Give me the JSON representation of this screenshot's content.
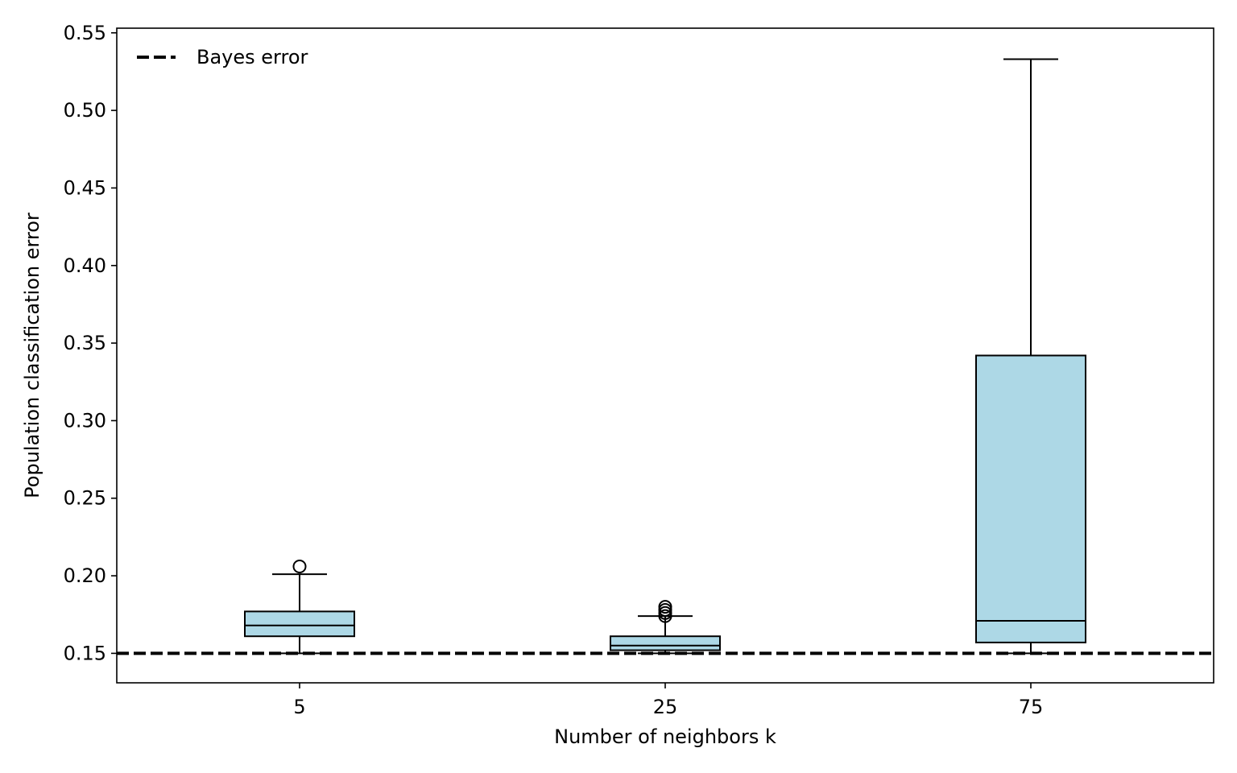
{
  "chart_data": {
    "type": "box",
    "xlabel": "Number of neighbors k",
    "ylabel": "Population classification error",
    "ylim": [
      0.131,
      0.553
    ],
    "yticks": [
      "0.15",
      "0.20",
      "0.25",
      "0.30",
      "0.35",
      "0.40",
      "0.45",
      "0.50",
      "0.55"
    ],
    "categories": [
      "5",
      "25",
      "75"
    ],
    "boxes": [
      {
        "category": "5",
        "whisker_low": 0.15,
        "q1": 0.161,
        "median": 0.168,
        "q3": 0.177,
        "whisker_high": 0.201,
        "outliers": [
          0.206
        ]
      },
      {
        "category": "25",
        "whisker_low": 0.15,
        "q1": 0.152,
        "median": 0.155,
        "q3": 0.161,
        "whisker_high": 0.174,
        "outliers": [
          0.174,
          0.176,
          0.178,
          0.18
        ]
      },
      {
        "category": "75",
        "whisker_low": 0.15,
        "q1": 0.157,
        "median": 0.171,
        "q3": 0.342,
        "whisker_high": 0.533,
        "outliers": []
      }
    ],
    "reference_line": {
      "label": "Bayes error",
      "value": 0.15,
      "style": "dashed"
    },
    "legend": {
      "position": "top-left",
      "entries": [
        "Bayes error"
      ]
    },
    "colors": {
      "box_fill": "#add8e6",
      "line": "#000000"
    },
    "grid": false
  }
}
